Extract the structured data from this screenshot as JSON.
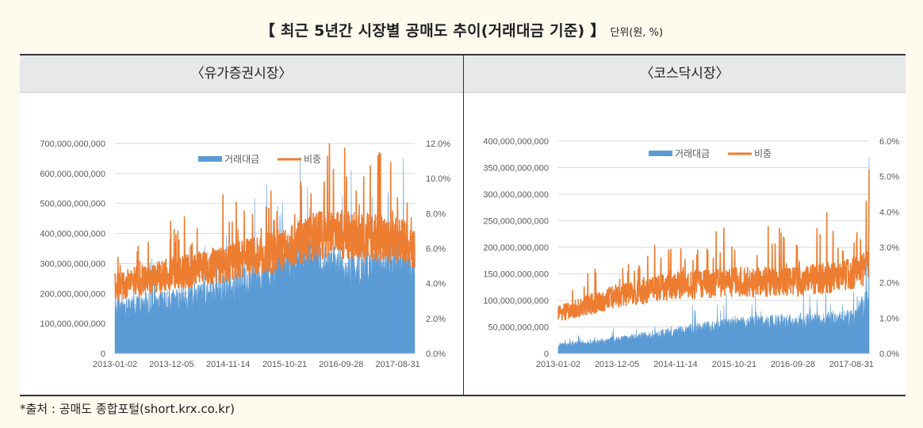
{
  "page": {
    "title": "【 최근 5년간 시장별 공매도 추이(거래대금 기준) 】",
    "unit": "단위(원, %)",
    "source": "*출처 : 공매도 종합포털(short.krx.co.kr)"
  },
  "colors": {
    "volume": "#5b9bd5",
    "ratio": "#ed7d31",
    "grid": "#d9d9d9",
    "axis": "#bfbfbf"
  },
  "chart_data": [
    {
      "id": "kospi",
      "type": "area+line",
      "title": "〈유가증권시장〉",
      "legend": [
        "거래대금",
        "비중"
      ],
      "legend_position": "top-center",
      "categories": [
        "2013-01-02",
        "2013-12-05",
        "2014-11-14",
        "2015-10-21",
        "2016-09-28",
        "2017-08-31"
      ],
      "y_left": {
        "ticks": [
          "0",
          "100,000,000,000",
          "200,000,000,000",
          "300,000,000,000",
          "400,000,000,000",
          "500,000,000,000",
          "600,000,000,000",
          "700,000,000,000"
        ],
        "range": [
          0,
          700000000000
        ]
      },
      "y_right": {
        "ticks": [
          "0.0%",
          "2.0%",
          "4.0%",
          "6.0%",
          "8.0%",
          "10.0%",
          "12.0%"
        ],
        "range": [
          0,
          12
        ]
      },
      "series": [
        {
          "name": "거래대금",
          "kind": "area",
          "axis": "left",
          "trend_x": [
            0,
            1,
            2,
            3,
            3.5,
            4,
            5,
            5.3
          ],
          "trend_y": [
            150000000000,
            170000000000,
            210000000000,
            300000000000,
            330000000000,
            280000000000,
            300000000000,
            270000000000
          ],
          "notable_peaks": [
            [
              5.1,
              650000000000
            ],
            [
              3.3,
              560000000000
            ]
          ]
        },
        {
          "name": "비중",
          "kind": "line",
          "axis": "right",
          "trend_x": [
            0,
            1,
            2,
            3,
            3.5,
            4,
            5,
            5.3
          ],
          "trend_y": [
            3.8,
            4.5,
            5.1,
            5.9,
            6.6,
            6.8,
            6.4,
            6.0
          ],
          "notable_peaks": [
            [
              4.65,
              11.3
            ],
            [
              4.4,
              10.1
            ],
            [
              3.7,
              9.8
            ]
          ]
        }
      ]
    },
    {
      "id": "kosdaq",
      "type": "area+line",
      "title": "〈코스닥시장〉",
      "legend": [
        "거래대금",
        "비중"
      ],
      "legend_position": "top-center",
      "categories": [
        "2013-01-02",
        "2013-12-05",
        "2014-11-14",
        "2015-10-21",
        "2016-09-28",
        "2017-08-31"
      ],
      "y_left": {
        "ticks": [
          "0",
          "50,000,000,000",
          "100,000,000,000",
          "150,000,000,000",
          "200,000,000,000",
          "250,000,000,000",
          "300,000,000,000",
          "350,000,000,000",
          "400,000,000,000"
        ],
        "range": [
          0,
          400000000000
        ]
      },
      "y_right": {
        "ticks": [
          "0.0%",
          "1.0%",
          "2.0%",
          "3.0%",
          "4.0%",
          "5.0%",
          "6.0%"
        ],
        "range": [
          0,
          6
        ]
      },
      "series": [
        {
          "name": "거래대금",
          "kind": "area",
          "axis": "left",
          "trend_x": [
            0,
            1,
            2,
            3,
            4,
            5,
            5.3
          ],
          "trend_y": [
            15000000000,
            25000000000,
            40000000000,
            55000000000,
            60000000000,
            65000000000,
            100000000000
          ],
          "notable_peaks": [
            [
              5.3,
              370000000000
            ],
            [
              5.25,
              200000000000
            ]
          ]
        },
        {
          "name": "비중",
          "kind": "line",
          "axis": "right",
          "trend_x": [
            0,
            1,
            2,
            3,
            4,
            5,
            5.3
          ],
          "trend_y": [
            1.1,
            1.6,
            1.9,
            2.0,
            2.0,
            2.2,
            2.4
          ],
          "notable_peaks": [
            [
              5.3,
              5.2
            ],
            [
              5.25,
              4.3
            ],
            [
              4.85,
              2.9
            ],
            [
              3.7,
              3.1
            ]
          ]
        }
      ]
    }
  ]
}
